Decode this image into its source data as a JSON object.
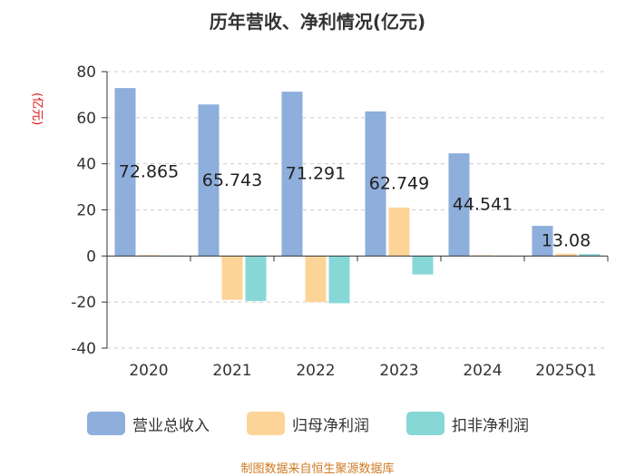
{
  "colors": {
    "revenue": "#8eaedc",
    "net_profit": "#fdd497",
    "deducted_profit": "#87d7d7",
    "title": "#333333",
    "ylabel": "#e01010",
    "source": "#d07a22",
    "grid": "#cccccc",
    "axis": "#333333"
  },
  "chart_data": {
    "type": "bar",
    "title": "历年营收、净利情况(亿元)",
    "ylabel": "(亿元)",
    "xlabel": "",
    "ylim": [
      -40,
      80
    ],
    "yticks": [
      -40,
      -20,
      0,
      20,
      40,
      60,
      80
    ],
    "grid": true,
    "legend_position": "bottom",
    "categories": [
      "2020",
      "2021",
      "2022",
      "2023",
      "2024",
      "2025Q1"
    ],
    "series": [
      {
        "name": "营业总收入",
        "values": [
          72.865,
          65.743,
          71.291,
          62.749,
          44.541,
          13.08
        ]
      },
      {
        "name": "归母净利润",
        "values": [
          0.4,
          -19.0,
          -20.0,
          21.0,
          0.3,
          1.0
        ]
      },
      {
        "name": "扣非净利润",
        "values": [
          0.2,
          -19.5,
          -20.5,
          -8.0,
          0.1,
          0.8
        ]
      }
    ],
    "data_labels": [
      "72.865",
      "65.743",
      "71.291",
      "62.749",
      "44.541",
      "13.08"
    ]
  },
  "source": "制图数据来自恒生聚源数据库"
}
